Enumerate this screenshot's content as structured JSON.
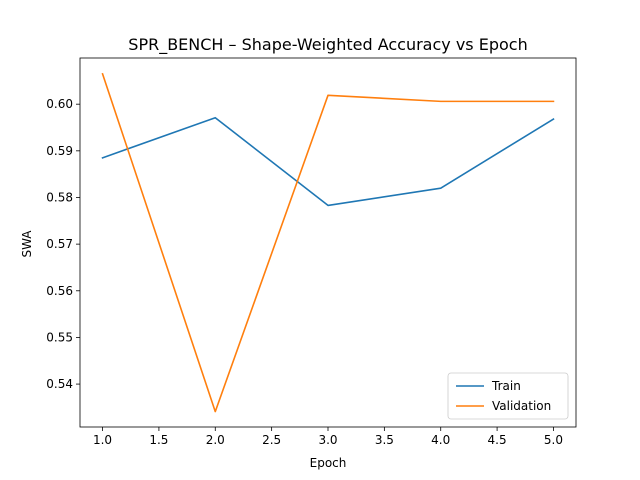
{
  "chart_data": {
    "type": "line",
    "title": "SPR_BENCH – Shape-Weighted Accuracy vs Epoch",
    "xlabel": "Epoch",
    "ylabel": "SWA",
    "xlim": [
      0.8,
      5.2
    ],
    "ylim": [
      0.5308,
      0.6099
    ],
    "xticks": [
      "1.0",
      "1.5",
      "2.0",
      "2.5",
      "3.0",
      "3.5",
      "4.0",
      "4.5",
      "5.0"
    ],
    "yticks": [
      "0.54",
      "0.55",
      "0.56",
      "0.57",
      "0.58",
      "0.59",
      "0.60"
    ],
    "grid": false,
    "legend_position": "lower right",
    "x": [
      1,
      2,
      3,
      4,
      5
    ],
    "series": [
      {
        "name": "Train",
        "color": "#1f77b4",
        "values": [
          0.5885,
          0.5971,
          0.5783,
          0.582,
          0.5968
        ]
      },
      {
        "name": "Validation",
        "color": "#ff7f0e",
        "values": [
          0.6065,
          0.5341,
          0.6019,
          0.6006,
          0.6006
        ]
      }
    ]
  }
}
